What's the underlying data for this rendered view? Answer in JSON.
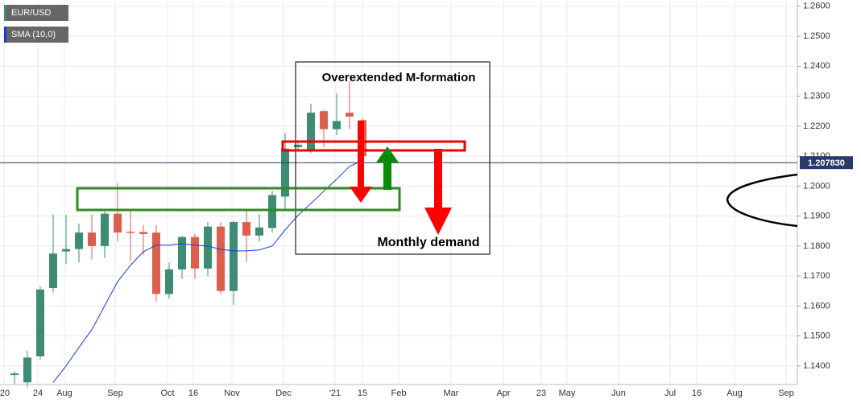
{
  "chart_data": {
    "type": "candlestick",
    "x": [
      0,
      1,
      2,
      3,
      4,
      5,
      6,
      7,
      8,
      9,
      10,
      11,
      12,
      13,
      14,
      15,
      16,
      17,
      18,
      19,
      20,
      21,
      22,
      23,
      24,
      25,
      26,
      27
    ],
    "series": [
      {
        "name": "EUR/USD",
        "up_color": "#3d8c73",
        "down_color": "#dc5f4e",
        "open": [
          1.137,
          1.1345,
          1.1432,
          1.166,
          1.1782,
          1.179,
          1.1845,
          1.18,
          1.1908,
          1.1848,
          1.1847,
          1.1845,
          1.164,
          1.1722,
          1.183,
          1.1725,
          1.1865,
          1.165,
          1.188,
          1.1835,
          1.186,
          1.1965,
          1.213,
          1.2122,
          1.225,
          1.219,
          1.2245,
          1.222
        ],
        "high": [
          1.1382,
          1.145,
          1.1665,
          1.1905,
          1.1905,
          1.1875,
          1.1905,
          1.1915,
          1.201,
          1.192,
          1.187,
          1.187,
          1.1745,
          1.1835,
          1.184,
          1.188,
          1.188,
          1.1885,
          1.192,
          1.1905,
          1.1985,
          1.2178,
          1.215,
          1.2275,
          1.2255,
          1.231,
          1.235,
          1.2225
        ],
        "low": [
          1.134,
          1.133,
          1.142,
          1.1645,
          1.174,
          1.1745,
          1.1755,
          1.176,
          1.1815,
          1.175,
          1.177,
          1.1615,
          1.1625,
          1.169,
          1.169,
          1.17,
          1.164,
          1.1603,
          1.1745,
          1.1815,
          1.1845,
          1.192,
          1.2115,
          1.211,
          1.213,
          1.217,
          1.219,
          1.208
        ],
        "close": [
          1.1375,
          1.1428,
          1.1655,
          1.1775,
          1.179,
          1.1845,
          1.18,
          1.1908,
          1.1845,
          1.1844,
          1.184,
          1.164,
          1.1722,
          1.183,
          1.1725,
          1.1865,
          1.165,
          1.188,
          1.1835,
          1.1862,
          1.197,
          1.2125,
          1.2138,
          1.2245,
          1.219,
          1.2217,
          1.2232,
          1.21
        ]
      },
      {
        "name": "SMA (10,0)",
        "color": "#1a3bd6",
        "values": [
          null,
          null,
          null,
          1.1345,
          1.14,
          1.1462,
          1.1521,
          1.1601,
          1.1681,
          1.1736,
          1.1781,
          1.1803,
          1.1803,
          1.1808,
          1.1803,
          1.18,
          1.1789,
          1.1784,
          1.1784,
          1.1787,
          1.18,
          1.1854,
          1.1902,
          1.1942,
          1.1983,
          1.2023,
          1.2066,
          1.2085
        ]
      }
    ],
    "current_price": {
      "value": 1.20783,
      "label": "1.207830"
    },
    "annotations": [
      "Overextended M-formation",
      "Monthly demand"
    ],
    "xlim": [
      -1.125,
      60.75
    ],
    "xticks": [
      {
        "value": -0.8125,
        "label": "'20"
      },
      {
        "value": 1.8125,
        "label": "24"
      },
      {
        "value": 3.875,
        "label": "Aug"
      },
      {
        "value": 7.8125,
        "label": "Sep"
      },
      {
        "value": 11.875,
        "label": "Oct"
      },
      {
        "value": 13.875,
        "label": "16"
      },
      {
        "value": 16.875,
        "label": "Nov"
      },
      {
        "value": 20.875,
        "label": "Dec"
      },
      {
        "value": 24.875,
        "label": "'21"
      },
      {
        "value": 27,
        "label": "15"
      },
      {
        "value": 29.8125,
        "label": "Feb"
      },
      {
        "value": 33.875,
        "label": "Mar"
      },
      {
        "value": 37.9375,
        "label": "Apr"
      },
      {
        "value": 40.875,
        "label": "23"
      },
      {
        "value": 42.875,
        "label": "May"
      },
      {
        "value": 46.875,
        "label": "Jun"
      },
      {
        "value": 50.875,
        "label": "Jul"
      },
      {
        "value": 52.9375,
        "label": "16"
      },
      {
        "value": 55.875,
        "label": "Aug"
      },
      {
        "value": 59.875,
        "label": "Sep"
      }
    ],
    "ylim": [
      1.1338,
      1.2621
    ],
    "yticks": [
      {
        "value": 1.14,
        "label": "1.1400"
      },
      {
        "value": 1.15,
        "label": "1.1500"
      },
      {
        "value": 1.16,
        "label": "1.1600"
      },
      {
        "value": 1.17,
        "label": "1.1700"
      },
      {
        "value": 1.18,
        "label": "1.1800"
      },
      {
        "value": 1.19,
        "label": "1.1900"
      },
      {
        "value": 1.2,
        "label": "1.2000"
      },
      {
        "value": 1.21,
        "label": "1.2100"
      },
      {
        "value": 1.22,
        "label": "1.2200"
      },
      {
        "value": 1.23,
        "label": "1.2300"
      },
      {
        "value": 1.24,
        "label": "1.2400"
      },
      {
        "value": 1.25,
        "label": "1.2500"
      },
      {
        "value": 1.26,
        "label": "1.2600"
      }
    ],
    "grid": true
  }
}
